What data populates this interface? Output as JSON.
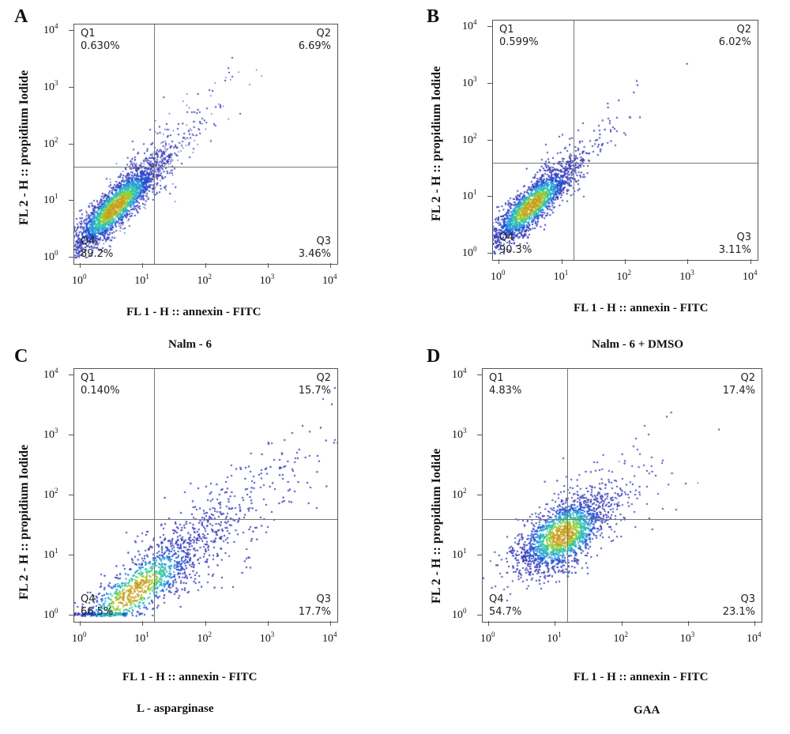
{
  "chart_data": [
    {
      "type": "scatter",
      "panel_label": "A",
      "title": "Nalm - 6",
      "xlabel": "FL 1 - H :: annexin - FITC",
      "ylabel": "FL 2 - H :: propidium Iodide",
      "x_scale": "log",
      "y_scale": "log",
      "xlim": [
        1,
        10000
      ],
      "ylim": [
        1,
        10000
      ],
      "gate": {
        "x": 15,
        "y": 40
      },
      "quadrants": {
        "Q1": {
          "label": "Q1",
          "value": "0.630%"
        },
        "Q2": {
          "label": "Q2",
          "value": "6.69%"
        },
        "Q3": {
          "label": "Q3",
          "value": "3.46%"
        },
        "Q4": {
          "label": "Q4",
          "value": "89.2%"
        }
      },
      "population": {
        "center_log": [
          0.55,
          0.9
        ],
        "slope": 1.15,
        "major_sd": 0.55,
        "minor_sd": 0.13,
        "tail": 0.08
      }
    },
    {
      "type": "scatter",
      "panel_label": "B",
      "title": "Nalm - 6 + DMSO",
      "xlabel": "FL 1 - H :: annexin - FITC",
      "ylabel": "FL 2 - H :: propidium Iodide",
      "x_scale": "log",
      "y_scale": "log",
      "xlim": [
        1,
        10000
      ],
      "ylim": [
        1,
        10000
      ],
      "gate": {
        "x": 15,
        "y": 40
      },
      "quadrants": {
        "Q1": {
          "label": "Q1",
          "value": "0.599%"
        },
        "Q2": {
          "label": "Q2",
          "value": "6.02%"
        },
        "Q3": {
          "label": "Q3",
          "value": "3.11%"
        },
        "Q4": {
          "label": "Q4",
          "value": "90.3%"
        }
      },
      "population": {
        "center_log": [
          0.5,
          0.85
        ],
        "slope": 1.1,
        "major_sd": 0.5,
        "minor_sd": 0.13,
        "tail": 0.07
      }
    },
    {
      "type": "scatter",
      "panel_label": "C",
      "title": "L - asparginase",
      "xlabel": "FL 1 - H :: annexin - FITC",
      "ylabel": "FL 2 - H :: propidium Iodide",
      "x_scale": "log",
      "y_scale": "log",
      "xlim": [
        1,
        10000
      ],
      "ylim": [
        1,
        10000
      ],
      "gate": {
        "x": 15,
        "y": 40
      },
      "quadrants": {
        "Q1": {
          "label": "Q1",
          "value": "0.140%"
        },
        "Q2": {
          "label": "Q2",
          "value": "15.7%"
        },
        "Q3": {
          "label": "Q3",
          "value": "17.7%"
        },
        "Q4": {
          "label": "Q4",
          "value": "66.5%"
        }
      },
      "population": {
        "center_log": [
          0.85,
          0.4
        ],
        "slope": 0.85,
        "major_sd": 0.75,
        "minor_sd": 0.2,
        "tail": 0.3
      }
    },
    {
      "type": "scatter",
      "panel_label": "D",
      "title": "GAA",
      "xlabel": "FL 1 - H :: annexin - FITC",
      "ylabel": "FL 2 - H :: propidium Iodide",
      "x_scale": "log",
      "y_scale": "log",
      "xlim": [
        1,
        10000
      ],
      "ylim": [
        1,
        10000
      ],
      "gate": {
        "x": 15,
        "y": 40
      },
      "quadrants": {
        "Q1": {
          "label": "Q1",
          "value": "4.83%"
        },
        "Q2": {
          "label": "Q2",
          "value": "17.4%"
        },
        "Q3": {
          "label": "Q3",
          "value": "23.1%"
        },
        "Q4": {
          "label": "Q4",
          "value": "54.7%"
        }
      },
      "population": {
        "center_log": [
          1.1,
          1.35
        ],
        "slope": 0.9,
        "major_sd": 0.45,
        "minor_sd": 0.22,
        "tail": 0.05
      }
    }
  ],
  "tick_labels": [
    "10",
    "10",
    "10",
    "10",
    "10"
  ],
  "tick_exponents": [
    "0",
    "1",
    "2",
    "3",
    "4"
  ]
}
